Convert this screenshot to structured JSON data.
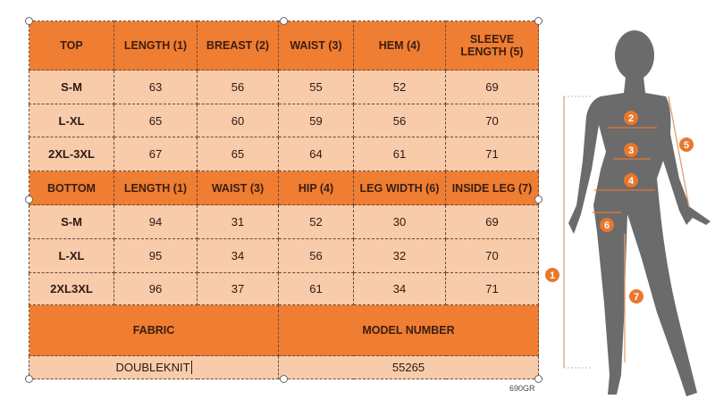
{
  "top": {
    "headers": [
      "TOP",
      "LENGTH (1)",
      "BREAST (2)",
      "WAIST (3)",
      "HEM (4)",
      "SLEEVE LENGTH (5)"
    ],
    "rows": [
      [
        "S-M",
        "63",
        "56",
        "55",
        "52",
        "69"
      ],
      [
        "L-XL",
        "65",
        "60",
        "59",
        "56",
        "70"
      ],
      [
        "2XL-3XL",
        "67",
        "65",
        "64",
        "61",
        "71"
      ]
    ]
  },
  "bottom": {
    "headers": [
      "BOTTOM",
      "LENGTH (1)",
      "WAIST (3)",
      "HIP (4)",
      "LEG WIDTH (6)",
      "INSIDE LEG (7)"
    ],
    "rows": [
      [
        "S-M",
        "94",
        "31",
        "52",
        "30",
        "69"
      ],
      [
        "L-XL",
        "95",
        "34",
        "56",
        "32",
        "70"
      ],
      [
        "2XL3XL",
        "96",
        "37",
        "61",
        "34",
        "71"
      ]
    ]
  },
  "info": {
    "fabric_label": "FABRIC",
    "model_label": "MODEL NUMBER",
    "fabric_value": "DOUBLEKNIT",
    "model_value": "55265"
  },
  "code": "690GR",
  "figure": {
    "markers": [
      "1",
      "2",
      "3",
      "4",
      "5",
      "6",
      "7"
    ]
  },
  "colors": {
    "header": "#ef7d32",
    "cell": "#f8cbab",
    "silhouette": "#6b6b6b",
    "marker": "#e8782e"
  }
}
